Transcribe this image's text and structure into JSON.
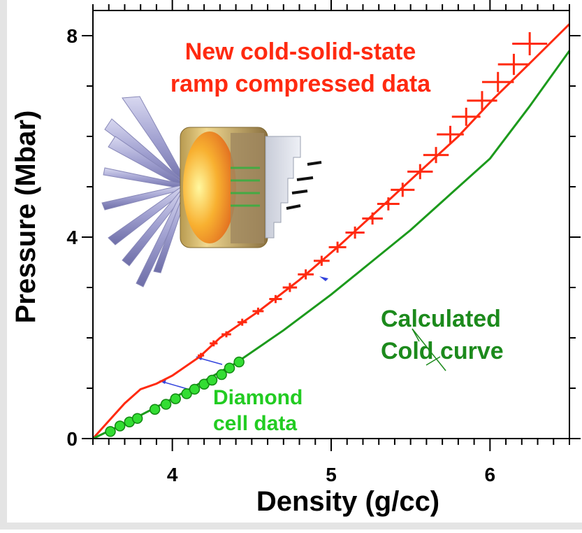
{
  "chart_data": {
    "type": "line",
    "xlabel": "Density (g/cc)",
    "ylabel": "Pressure (Mbar)",
    "xlim": [
      3.5,
      6.5
    ],
    "ylim": [
      0,
      8.5
    ],
    "xticks": [
      4,
      5,
      6
    ],
    "yticks": [
      0,
      4,
      8
    ],
    "xminor": 10,
    "yminor": 4,
    "series": [
      {
        "kind": "line",
        "color": "#ff2a10",
        "x": [
          3.5,
          3.6,
          3.7,
          3.8,
          3.9,
          4.0,
          4.17,
          4.3,
          4.54,
          4.8,
          5.04,
          5.3,
          5.55,
          5.8,
          6.02,
          6.25,
          6.5
        ],
        "values": [
          0,
          0.35,
          0.7,
          0.98,
          1.09,
          1.25,
          1.62,
          2.0,
          2.52,
          3.15,
          3.8,
          4.55,
          5.28,
          6.0,
          6.74,
          7.45,
          8.23
        ]
      },
      {
        "kind": "errorbar",
        "color": "#ff2a10",
        "x": [
          4.18,
          4.26,
          4.34,
          4.44,
          4.54,
          4.65,
          4.74,
          4.84,
          4.94,
          5.04,
          5.15,
          5.26,
          5.36,
          5.45,
          5.56,
          5.66,
          5.75,
          5.85,
          5.95,
          6.05,
          6.15,
          6.25
        ],
        "values": [
          1.65,
          1.89,
          2.07,
          2.31,
          2.53,
          2.77,
          3.0,
          3.26,
          3.53,
          3.8,
          4.09,
          4.37,
          4.66,
          4.94,
          5.3,
          5.63,
          6.04,
          6.39,
          6.71,
          7.08,
          7.43,
          7.84
        ],
        "xerr": [
          0.02,
          0.025,
          0.03,
          0.03,
          0.035,
          0.04,
          0.045,
          0.05,
          0.05,
          0.055,
          0.06,
          0.065,
          0.07,
          0.075,
          0.08,
          0.08,
          0.085,
          0.09,
          0.095,
          0.1,
          0.1,
          0.11
        ],
        "yerr": [
          0.05,
          0.06,
          0.06,
          0.07,
          0.07,
          0.08,
          0.09,
          0.1,
          0.1,
          0.11,
          0.12,
          0.12,
          0.13,
          0.14,
          0.15,
          0.16,
          0.17,
          0.18,
          0.19,
          0.2,
          0.21,
          0.23
        ]
      },
      {
        "kind": "line",
        "color": "#1c9a1c",
        "x": [
          3.5,
          3.7,
          4.0,
          4.4,
          4.7,
          5.0,
          5.25,
          5.5,
          5.75,
          6.0,
          6.25,
          6.5
        ],
        "values": [
          0,
          0.3,
          0.79,
          1.5,
          2.15,
          2.86,
          3.5,
          4.14,
          4.85,
          5.56,
          6.6,
          7.7
        ]
      },
      {
        "kind": "points",
        "color": "#33dd33",
        "x": [
          3.61,
          3.67,
          3.73,
          3.78,
          3.89,
          3.96,
          4.02,
          4.09,
          4.14,
          4.2,
          4.25,
          4.31,
          4.36,
          4.42
        ],
        "values": [
          0.14,
          0.25,
          0.33,
          0.4,
          0.58,
          0.68,
          0.79,
          0.89,
          0.98,
          1.08,
          1.16,
          1.27,
          1.4,
          1.52
        ]
      }
    ],
    "annotations": [
      {
        "lines": [
          "New cold-solid-state",
          "ramp compressed data"
        ],
        "color": "#ff2a10"
      },
      {
        "lines": [
          "Calculated",
          "Cold curve"
        ],
        "color": "#1c8a1c"
      },
      {
        "lines": [
          "Diamond",
          "cell data"
        ],
        "color": "#22cc22"
      }
    ]
  }
}
